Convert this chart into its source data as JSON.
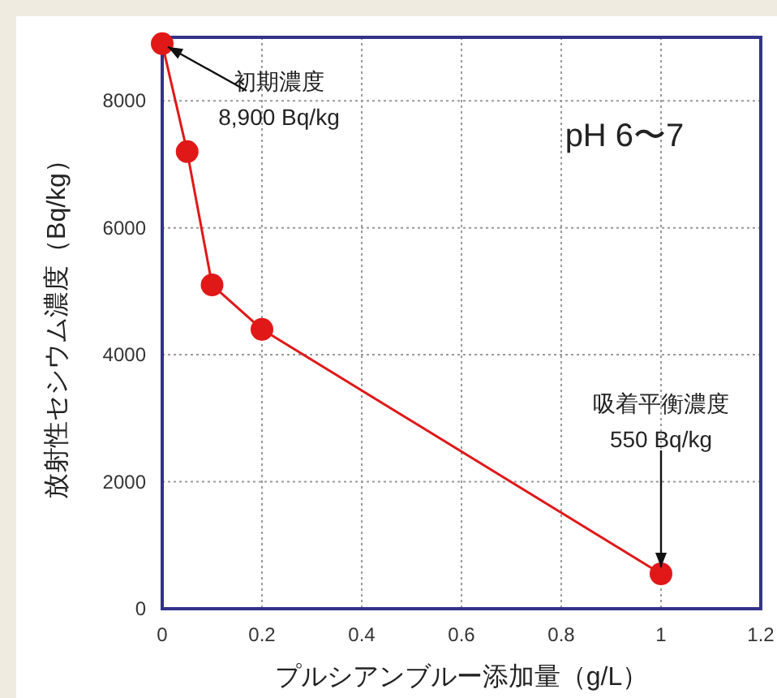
{
  "chart_data": {
    "type": "line",
    "xlabel": "プルシアンブルー添加量（g/L）",
    "ylabel": "放射性セシウム濃度（Bq/kg）",
    "x": [
      0,
      0.05,
      0.1,
      0.2,
      1
    ],
    "series": [
      {
        "color": "#e01818",
        "values": [
          8900,
          7200,
          5100,
          4400,
          550
        ]
      }
    ],
    "xlim": [
      0,
      1.2
    ],
    "xticks": [
      0,
      0.2,
      0.4,
      0.6,
      0.8,
      1,
      1.2
    ],
    "ylim": [
      0,
      9000
    ],
    "yticks": [
      0,
      2000,
      4000,
      6000,
      8000
    ],
    "grid": true,
    "marker": "circle",
    "line_style": "solid",
    "annotations": [
      {
        "text": "初期濃度\n8,900 Bq/kg",
        "x": 0,
        "y": 8900
      },
      {
        "text": "吸着平衡濃度\n550 Bq/kg",
        "x": 1,
        "y": 550
      },
      "pH 6〜7"
    ]
  }
}
